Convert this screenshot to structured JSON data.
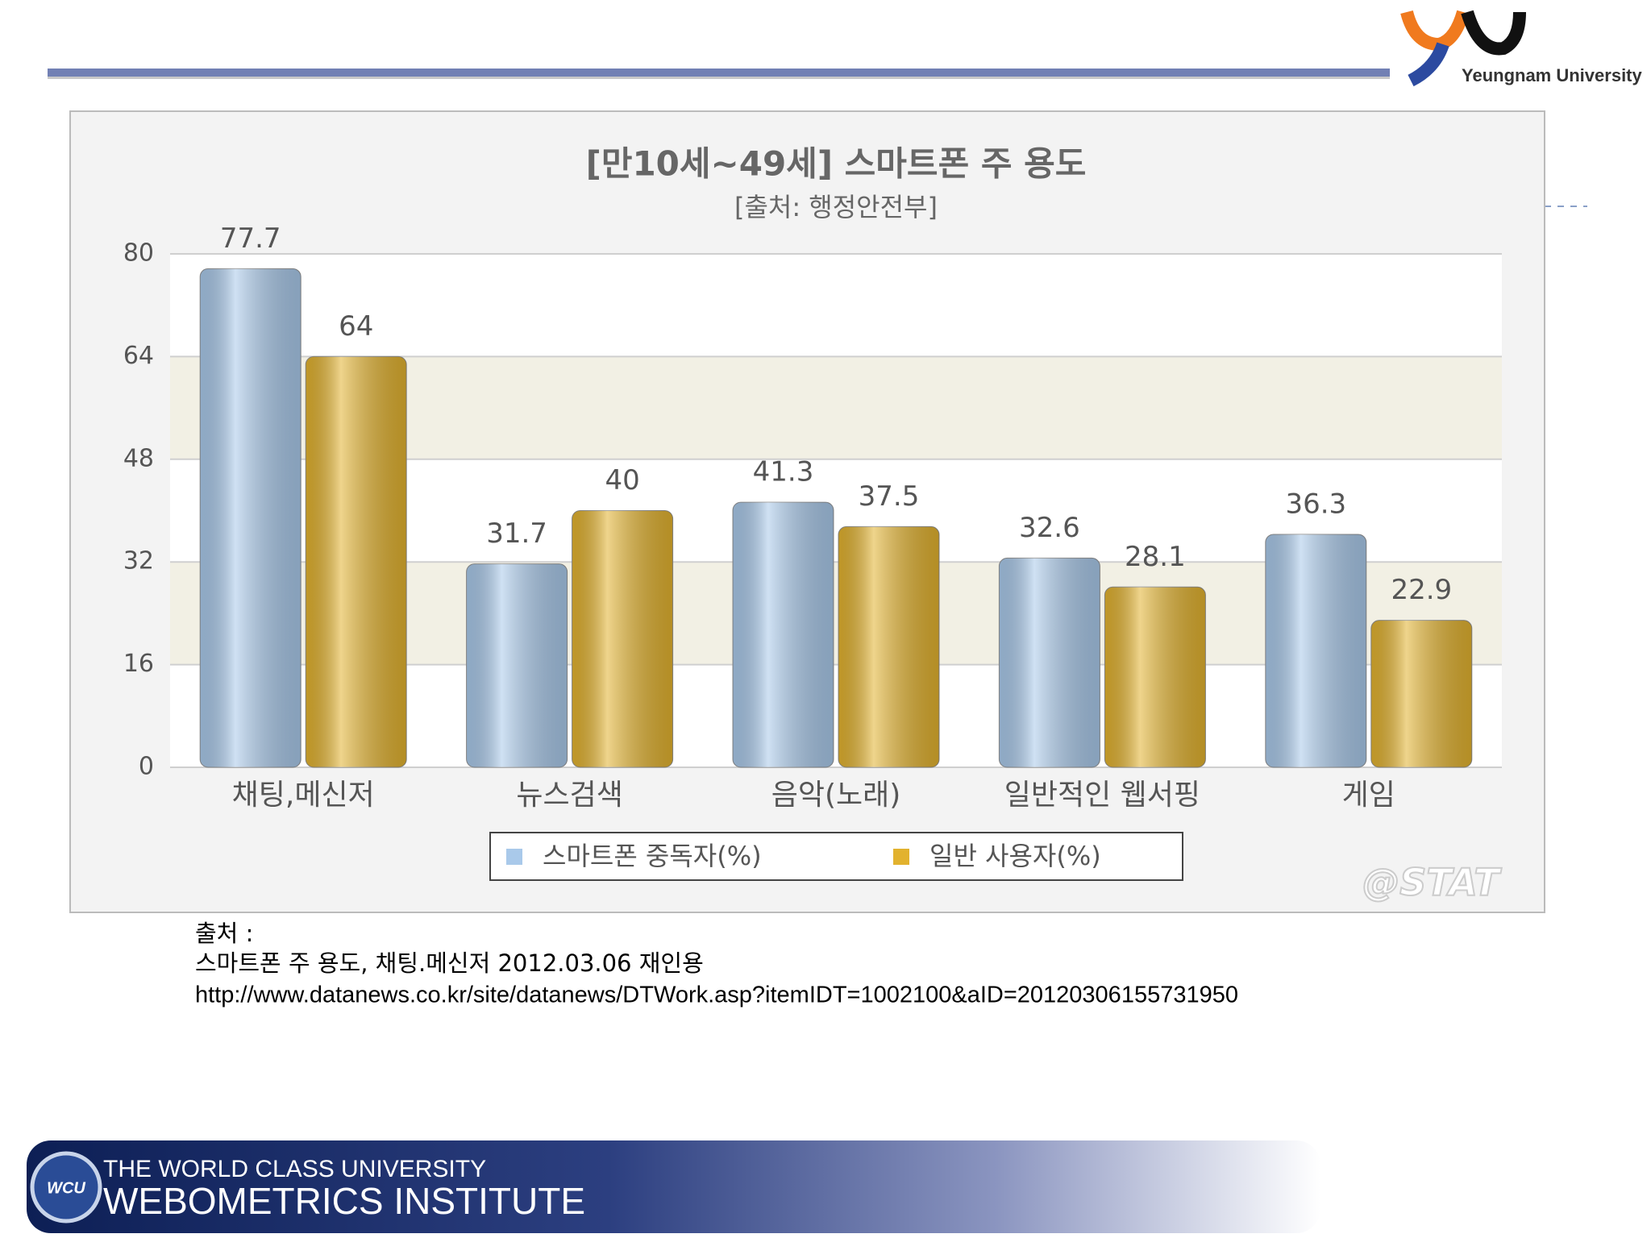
{
  "chart_data": {
    "type": "bar",
    "title": "[만10세~49세] 스마트폰 주 용도",
    "subtitle": "[출처: 행정안전부]",
    "categories": [
      "채팅,메신저",
      "뉴스검색",
      "음악(노래)",
      "일반적인 웹서핑",
      "게임"
    ],
    "series": [
      {
        "name": "스마트폰 중독자(%)",
        "color": "#a9c9ea",
        "values": [
          77.7,
          31.7,
          41.3,
          32.6,
          36.3
        ]
      },
      {
        "name": "일반 사용자(%)",
        "color": "#e2b22e",
        "values": [
          64,
          40,
          37.5,
          28.1,
          22.9
        ]
      }
    ],
    "ylim": [
      0,
      80
    ],
    "yticks": [
      0,
      16,
      32,
      48,
      64,
      80
    ],
    "grid": true,
    "watermark": "@STAT"
  },
  "slide": {
    "logo": "Yeungnam University",
    "source": [
      "출처 :",
      "스마트폰 주 용도, 채팅.메신저 2012.03.06 재인용",
      "http://www.datanews.co.kr/site/datanews/DTWork.asp?itemIDT=1002100&aID=20120306155731950"
    ],
    "footer": {
      "badge": "WCU",
      "line1": "THE WORLD CLASS UNIVERSITY",
      "line2": "WEBOMETRICS INSTITUTE"
    }
  }
}
